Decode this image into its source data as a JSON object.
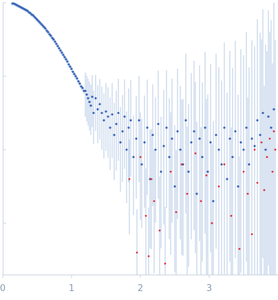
{
  "chart_data": {
    "type": "scatter",
    "title": "",
    "xlabel": "",
    "ylabel": "",
    "y_scale": "log",
    "xlim": [
      0,
      4.0
    ],
    "ylim_log10": [
      -3.7,
      0.0
    ],
    "grid": false,
    "legend": "none",
    "x_ticks": [
      {
        "value": 0,
        "label": "0"
      },
      {
        "value": 1,
        "label": "1"
      },
      {
        "value": 2,
        "label": "2"
      },
      {
        "value": 3,
        "label": "3"
      }
    ],
    "y_tick_log10": [
      0,
      -1,
      -2,
      -3
    ],
    "colors": {
      "points": "#3a66b9",
      "outliers": "#e0303a",
      "error_bars": "#b6c9e6",
      "axis": "#c9d3df",
      "tick_text": "#8a9bb0"
    },
    "series": [
      {
        "role": "used",
        "x": [
          0.14,
          0.16,
          0.18,
          0.2,
          0.22,
          0.24,
          0.26,
          0.28,
          0.3,
          0.32,
          0.34,
          0.36,
          0.38,
          0.4,
          0.42,
          0.44,
          0.46,
          0.48,
          0.5,
          0.52,
          0.54,
          0.56,
          0.58,
          0.6,
          0.62,
          0.64,
          0.66,
          0.68,
          0.7,
          0.72,
          0.74,
          0.76,
          0.78,
          0.8,
          0.82,
          0.84,
          0.86,
          0.88,
          0.9,
          0.92,
          0.94,
          0.96,
          0.98,
          1.0,
          1.02,
          1.04,
          1.06,
          1.08,
          1.1,
          1.12,
          1.14,
          1.16,
          1.18,
          1.2,
          1.22,
          1.24,
          1.26,
          1.28,
          1.3,
          1.32,
          1.35,
          1.38,
          1.41,
          1.44,
          1.47,
          1.5,
          1.53,
          1.56,
          1.59,
          1.62,
          1.65,
          1.68,
          1.71,
          1.74,
          1.77,
          1.8,
          1.83,
          1.86,
          1.9,
          1.94,
          1.98,
          2.02,
          2.06,
          2.1,
          2.14,
          2.18,
          2.22,
          2.26,
          2.3,
          2.34,
          2.38,
          2.42,
          2.46,
          2.5,
          2.54,
          2.58,
          2.62,
          2.66,
          2.7,
          2.74,
          2.78,
          2.82,
          2.86,
          2.9,
          2.94,
          2.98,
          3.02,
          3.06,
          3.1,
          3.14,
          3.18,
          3.22,
          3.26,
          3.3,
          3.34,
          3.38,
          3.42,
          3.46,
          3.5,
          3.54,
          3.58,
          3.62,
          3.66,
          3.7,
          3.74,
          3.78,
          3.82,
          3.86,
          3.9,
          3.94
        ],
        "y_log10": [
          -0.01,
          -0.01,
          -0.02,
          -0.03,
          -0.04,
          -0.05,
          -0.06,
          -0.07,
          -0.08,
          -0.09,
          -0.1,
          -0.11,
          -0.13,
          -0.14,
          -0.16,
          -0.17,
          -0.19,
          -0.21,
          -0.23,
          -0.25,
          -0.27,
          -0.29,
          -0.31,
          -0.33,
          -0.35,
          -0.38,
          -0.4,
          -0.43,
          -0.45,
          -0.48,
          -0.5,
          -0.53,
          -0.56,
          -0.59,
          -0.62,
          -0.65,
          -0.68,
          -0.71,
          -0.74,
          -0.77,
          -0.8,
          -0.84,
          -0.87,
          -0.9,
          -0.94,
          -0.97,
          -1.0,
          -1.03,
          -1.07,
          -1.1,
          -1.14,
          -1.16,
          -1.2,
          -1.2,
          -1.25,
          -1.3,
          -1.35,
          -1.4,
          -1.28,
          -1.5,
          -1.3,
          -1.45,
          -1.38,
          -1.5,
          -1.6,
          -1.48,
          -1.55,
          -1.7,
          -1.52,
          -1.8,
          -1.65,
          -1.5,
          -1.9,
          -1.75,
          -1.55,
          -2.0,
          -1.7,
          -1.6,
          -2.1,
          -1.85,
          -1.6,
          -2.2,
          -1.9,
          -1.7,
          -2.4,
          -1.8,
          -2.0,
          -1.65,
          -2.3,
          -1.95,
          -1.7,
          -2.1,
          -1.85,
          -2.5,
          -1.75,
          -2.0,
          -2.2,
          -1.6,
          -2.3,
          -1.9,
          -1.75,
          -2.6,
          -1.85,
          -2.1,
          -1.7,
          -2.3,
          -1.9,
          -2.7,
          -1.8,
          -2.0,
          -2.2,
          -1.7,
          -2.4,
          -1.85,
          -2.1,
          -1.75,
          -2.5,
          -1.9,
          -2.0,
          -1.7,
          -2.2,
          -1.85,
          -1.95,
          -1.6,
          -1.8,
          -1.5,
          -2.0,
          -1.55,
          -1.7,
          -1.45
        ]
      },
      {
        "role": "outliers",
        "x": [
          1.84,
          1.95,
          2.0,
          2.08,
          2.12,
          2.16,
          2.2,
          2.28,
          2.36,
          2.44,
          2.52,
          2.6,
          2.68,
          2.8,
          2.88,
          2.96,
          3.04,
          3.14,
          3.22,
          3.32,
          3.44,
          3.5,
          3.56,
          3.62,
          3.66,
          3.7,
          3.76,
          3.8,
          3.84,
          3.88,
          3.92,
          3.94,
          3.96
        ],
        "y_log10": [
          -2.4,
          -3.4,
          -2.1,
          -2.9,
          -3.45,
          -2.4,
          -2.7,
          -3.1,
          -3.55,
          -2.3,
          -2.85,
          -2.2,
          -2.6,
          -2.05,
          -2.7,
          -2.35,
          -3.0,
          -2.5,
          -2.2,
          -2.9,
          -3.35,
          -2.3,
          -2.6,
          -3.15,
          -2.0,
          -2.45,
          -1.9,
          -2.55,
          -2.1,
          -1.85,
          -2.3,
          -1.75,
          -2.0
        ]
      }
    ]
  }
}
